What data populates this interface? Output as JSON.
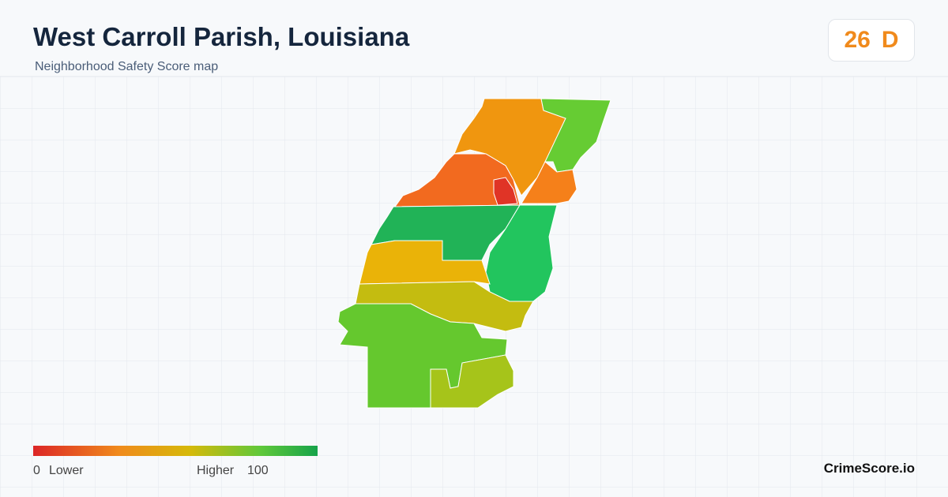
{
  "header": {
    "title": "West Carroll Parish, Louisiana",
    "subtitle": "Neighborhood Safety Score map"
  },
  "score": {
    "value": "26",
    "grade": "D"
  },
  "legend": {
    "min": "0",
    "low_label": "Lower",
    "high_label": "Higher",
    "max": "100"
  },
  "brand": "CrimeScore.io"
}
